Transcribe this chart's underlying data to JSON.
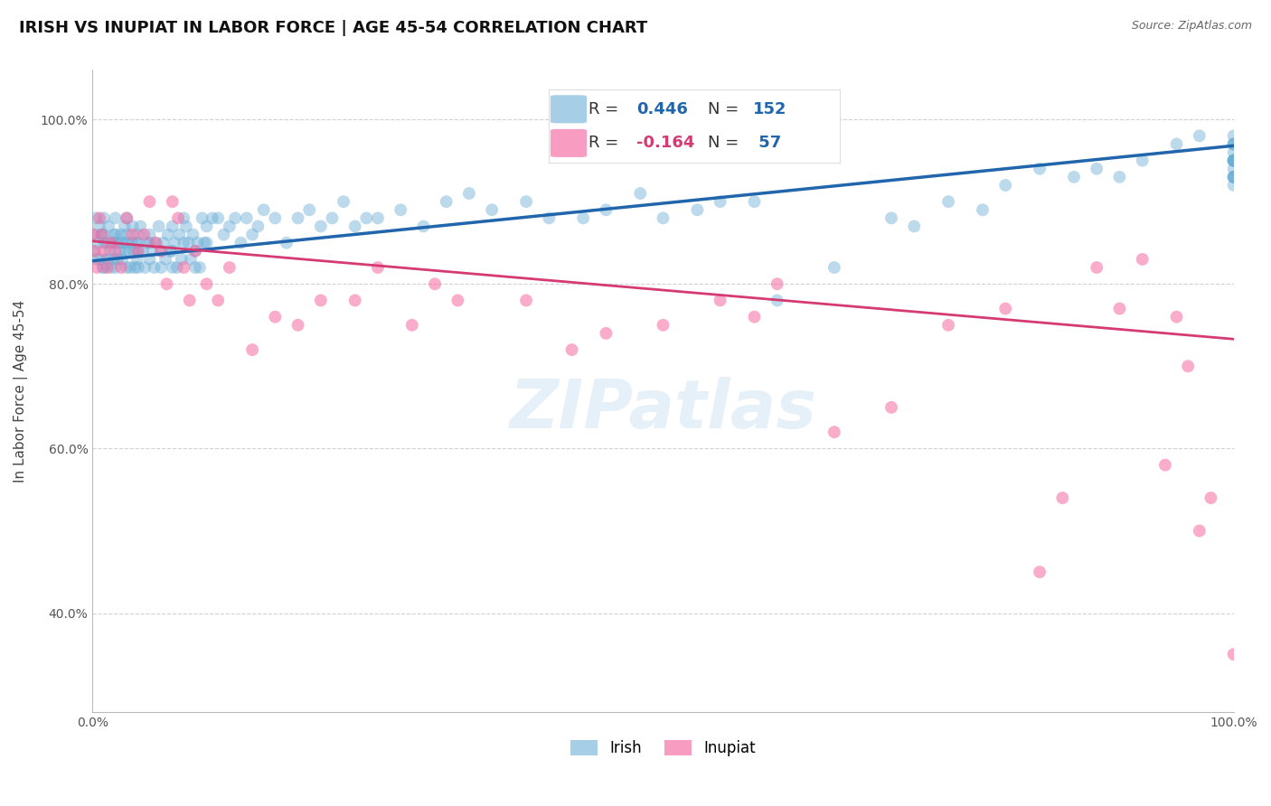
{
  "title": "IRISH VS INUPIAT IN LABOR FORCE | AGE 45-54 CORRELATION CHART",
  "source": "Source: ZipAtlas.com",
  "ylabel": "In Labor Force | Age 45-54",
  "xlim": [
    0.0,
    1.0
  ],
  "ylim": [
    0.28,
    1.06
  ],
  "y_tick_values": [
    0.4,
    0.6,
    0.8,
    1.0
  ],
  "irish_R": 0.446,
  "irish_N": 152,
  "inupiat_R": -0.164,
  "inupiat_N": 57,
  "irish_color": "#6baed6",
  "inupiat_color": "#f768a1",
  "irish_line_color": "#2166ac",
  "inupiat_line_color": "#d63a72",
  "background_color": "#ffffff",
  "grid_color": "#cccccc",
  "title_fontsize": 13,
  "axis_fontsize": 11,
  "marker_size": 10,
  "irish_line_start_y": 0.828,
  "irish_line_end_y": 0.968,
  "inupiat_line_start_y": 0.852,
  "inupiat_line_end_y": 0.733,
  "irish_x": [
    0.0,
    0.002,
    0.003,
    0.004,
    0.005,
    0.006,
    0.007,
    0.008,
    0.009,
    0.01,
    0.01,
    0.01,
    0.01,
    0.012,
    0.013,
    0.014,
    0.015,
    0.016,
    0.017,
    0.018,
    0.019,
    0.02,
    0.02,
    0.02,
    0.02,
    0.022,
    0.023,
    0.024,
    0.025,
    0.026,
    0.027,
    0.028,
    0.029,
    0.03,
    0.03,
    0.03,
    0.03,
    0.032,
    0.033,
    0.034,
    0.035,
    0.036,
    0.037,
    0.038,
    0.039,
    0.04,
    0.04,
    0.04,
    0.04,
    0.042,
    0.044,
    0.046,
    0.048,
    0.05,
    0.05,
    0.05,
    0.052,
    0.054,
    0.056,
    0.058,
    0.06,
    0.06,
    0.062,
    0.064,
    0.066,
    0.068,
    0.07,
    0.07,
    0.07,
    0.072,
    0.074,
    0.076,
    0.078,
    0.08,
    0.08,
    0.082,
    0.084,
    0.086,
    0.088,
    0.09,
    0.09,
    0.092,
    0.094,
    0.096,
    0.098,
    0.1,
    0.1,
    0.105,
    0.11,
    0.115,
    0.12,
    0.125,
    0.13,
    0.135,
    0.14,
    0.145,
    0.15,
    0.16,
    0.17,
    0.18,
    0.19,
    0.2,
    0.21,
    0.22,
    0.23,
    0.24,
    0.25,
    0.27,
    0.29,
    0.31,
    0.33,
    0.35,
    0.38,
    0.4,
    0.43,
    0.45,
    0.48,
    0.5,
    0.53,
    0.55,
    0.58,
    0.6,
    0.65,
    0.7,
    0.72,
    0.75,
    0.78,
    0.8,
    0.83,
    0.86,
    0.88,
    0.9,
    0.92,
    0.95,
    0.97,
    1.0,
    1.0,
    1.0,
    1.0,
    1.0,
    1.0,
    1.0,
    1.0,
    1.0,
    1.0,
    1.0,
    1.0,
    1.0,
    1.0,
    1.0,
    1.0,
    1.0
  ],
  "irish_y": [
    0.84,
    0.86,
    0.88,
    0.83,
    0.85,
    0.87,
    0.83,
    0.86,
    0.82,
    0.88,
    0.85,
    0.82,
    0.86,
    0.85,
    0.83,
    0.87,
    0.84,
    0.82,
    0.85,
    0.83,
    0.86,
    0.88,
    0.85,
    0.82,
    0.86,
    0.83,
    0.85,
    0.84,
    0.86,
    0.83,
    0.85,
    0.87,
    0.84,
    0.88,
    0.85,
    0.82,
    0.86,
    0.84,
    0.82,
    0.85,
    0.87,
    0.84,
    0.82,
    0.85,
    0.83,
    0.86,
    0.84,
    0.82,
    0.85,
    0.87,
    0.84,
    0.82,
    0.85,
    0.86,
    0.83,
    0.85,
    0.84,
    0.82,
    0.85,
    0.87,
    0.84,
    0.82,
    0.85,
    0.83,
    0.86,
    0.84,
    0.87,
    0.84,
    0.82,
    0.85,
    0.82,
    0.86,
    0.83,
    0.88,
    0.85,
    0.87,
    0.85,
    0.83,
    0.86,
    0.84,
    0.82,
    0.85,
    0.82,
    0.88,
    0.85,
    0.87,
    0.85,
    0.88,
    0.88,
    0.86,
    0.87,
    0.88,
    0.85,
    0.88,
    0.86,
    0.87,
    0.89,
    0.88,
    0.85,
    0.88,
    0.89,
    0.87,
    0.88,
    0.9,
    0.87,
    0.88,
    0.88,
    0.89,
    0.87,
    0.9,
    0.91,
    0.89,
    0.9,
    0.88,
    0.88,
    0.89,
    0.91,
    0.88,
    0.89,
    0.9,
    0.9,
    0.78,
    0.82,
    0.88,
    0.87,
    0.9,
    0.89,
    0.92,
    0.94,
    0.93,
    0.94,
    0.93,
    0.95,
    0.97,
    0.98,
    0.97,
    0.95,
    0.98,
    0.95,
    0.93,
    0.95,
    0.93,
    0.93,
    0.92,
    0.95,
    0.94,
    0.93,
    0.95,
    0.96,
    0.97,
    0.95,
    0.97
  ],
  "inupiat_x": [
    0.0,
    0.002,
    0.004,
    0.006,
    0.008,
    0.01,
    0.013,
    0.016,
    0.02,
    0.025,
    0.03,
    0.035,
    0.04,
    0.045,
    0.05,
    0.055,
    0.06,
    0.065,
    0.07,
    0.075,
    0.08,
    0.085,
    0.09,
    0.1,
    0.11,
    0.12,
    0.14,
    0.16,
    0.18,
    0.2,
    0.23,
    0.25,
    0.28,
    0.3,
    0.32,
    0.38,
    0.42,
    0.45,
    0.5,
    0.55,
    0.58,
    0.6,
    0.65,
    0.7,
    0.75,
    0.8,
    0.83,
    0.85,
    0.88,
    0.9,
    0.92,
    0.94,
    0.95,
    0.96,
    0.97,
    0.98,
    1.0
  ],
  "inupiat_y": [
    0.86,
    0.84,
    0.82,
    0.88,
    0.86,
    0.84,
    0.82,
    0.85,
    0.84,
    0.82,
    0.88,
    0.86,
    0.84,
    0.86,
    0.9,
    0.85,
    0.84,
    0.8,
    0.9,
    0.88,
    0.82,
    0.78,
    0.84,
    0.8,
    0.78,
    0.82,
    0.72,
    0.76,
    0.75,
    0.78,
    0.78,
    0.82,
    0.75,
    0.8,
    0.78,
    0.78,
    0.72,
    0.74,
    0.75,
    0.78,
    0.76,
    0.8,
    0.62,
    0.65,
    0.75,
    0.77,
    0.45,
    0.54,
    0.82,
    0.77,
    0.83,
    0.58,
    0.76,
    0.7,
    0.5,
    0.54,
    0.35
  ]
}
